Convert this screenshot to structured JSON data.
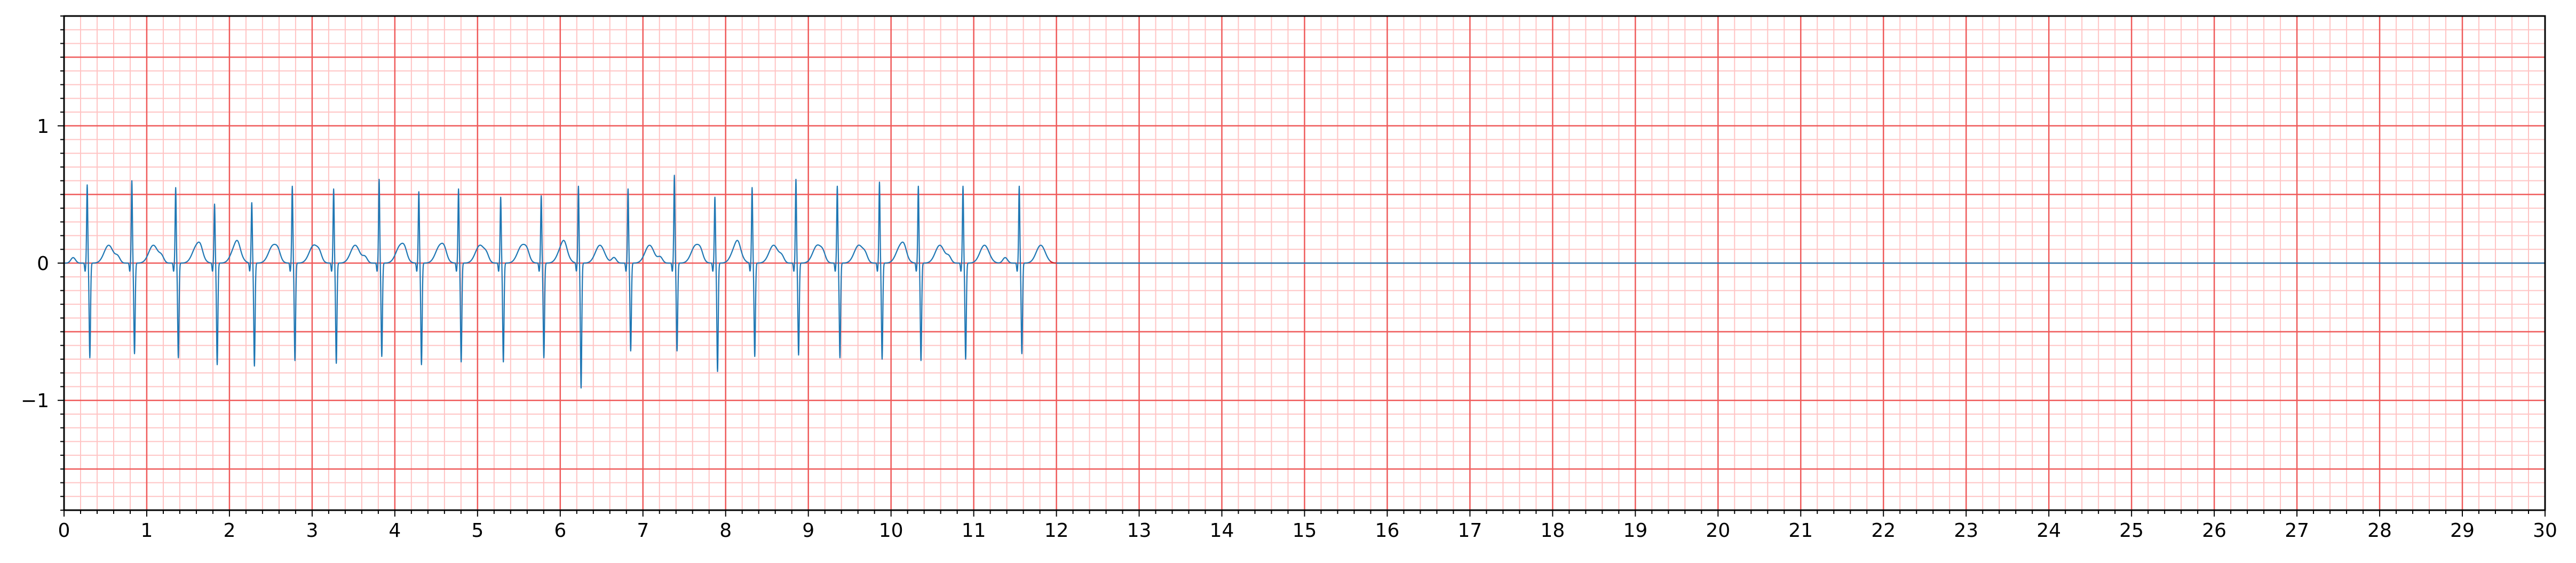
{
  "chart_data": {
    "type": "line",
    "title": "",
    "xlabel": "",
    "ylabel": "",
    "xlim": [
      0,
      30
    ],
    "ylim": [
      -1.8,
      1.8
    ],
    "x_ticks": [
      "0",
      "1",
      "2",
      "3",
      "4",
      "5",
      "6",
      "7",
      "8",
      "9",
      "10",
      "11",
      "12",
      "13",
      "14",
      "15",
      "16",
      "17",
      "18",
      "19",
      "20",
      "21",
      "22",
      "23",
      "24",
      "25",
      "26",
      "27",
      "28",
      "29",
      "30"
    ],
    "y_ticks": [
      {
        "value": 1,
        "label": "1"
      },
      {
        "value": 0,
        "label": "0"
      },
      {
        "value": -1,
        "label": "−1"
      }
    ],
    "grid": true,
    "colors": {
      "major_grid": "#ef5a5a",
      "minor_grid": "#ffc4c4",
      "signal": "#1f77b4",
      "signal_end": "#d62728",
      "axis": "#000000"
    },
    "series": [
      {
        "signal_end_x": 12.0,
        "flat_value": 0,
        "beats": [
          {
            "r": 0.28,
            "peak": 0.57,
            "s": -0.69
          },
          {
            "r": 0.82,
            "peak": 0.6,
            "s": -0.66
          },
          {
            "r": 1.35,
            "peak": 0.55,
            "s": -0.69
          },
          {
            "r": 1.82,
            "peak": 0.43,
            "s": -0.74
          },
          {
            "r": 2.27,
            "peak": 0.44,
            "s": -0.75
          },
          {
            "r": 2.76,
            "peak": 0.56,
            "s": -0.71
          },
          {
            "r": 3.26,
            "peak": 0.54,
            "s": -0.73
          },
          {
            "r": 3.81,
            "peak": 0.61,
            "s": -0.68
          },
          {
            "r": 4.29,
            "peak": 0.52,
            "s": -0.74
          },
          {
            "r": 4.77,
            "peak": 0.54,
            "s": -0.72
          },
          {
            "r": 5.28,
            "peak": 0.48,
            "s": -0.72
          },
          {
            "r": 5.77,
            "peak": 0.49,
            "s": -0.69
          },
          {
            "r": 6.22,
            "peak": 0.56,
            "s": -0.91
          },
          {
            "r": 6.82,
            "peak": 0.54,
            "s": -0.64
          },
          {
            "r": 7.38,
            "peak": 0.64,
            "s": -0.64
          },
          {
            "r": 7.87,
            "peak": 0.48,
            "s": -0.79
          },
          {
            "r": 8.32,
            "peak": 0.55,
            "s": -0.68
          },
          {
            "r": 8.85,
            "peak": 0.61,
            "s": -0.67
          },
          {
            "r": 9.35,
            "peak": 0.56,
            "s": -0.69
          },
          {
            "r": 9.86,
            "peak": 0.59,
            "s": -0.7
          },
          {
            "r": 10.33,
            "peak": 0.56,
            "s": -0.71
          },
          {
            "r": 10.87,
            "peak": 0.56,
            "s": -0.7
          },
          {
            "r": 11.55,
            "peak": 0.56,
            "s": -0.66
          }
        ]
      }
    ]
  }
}
